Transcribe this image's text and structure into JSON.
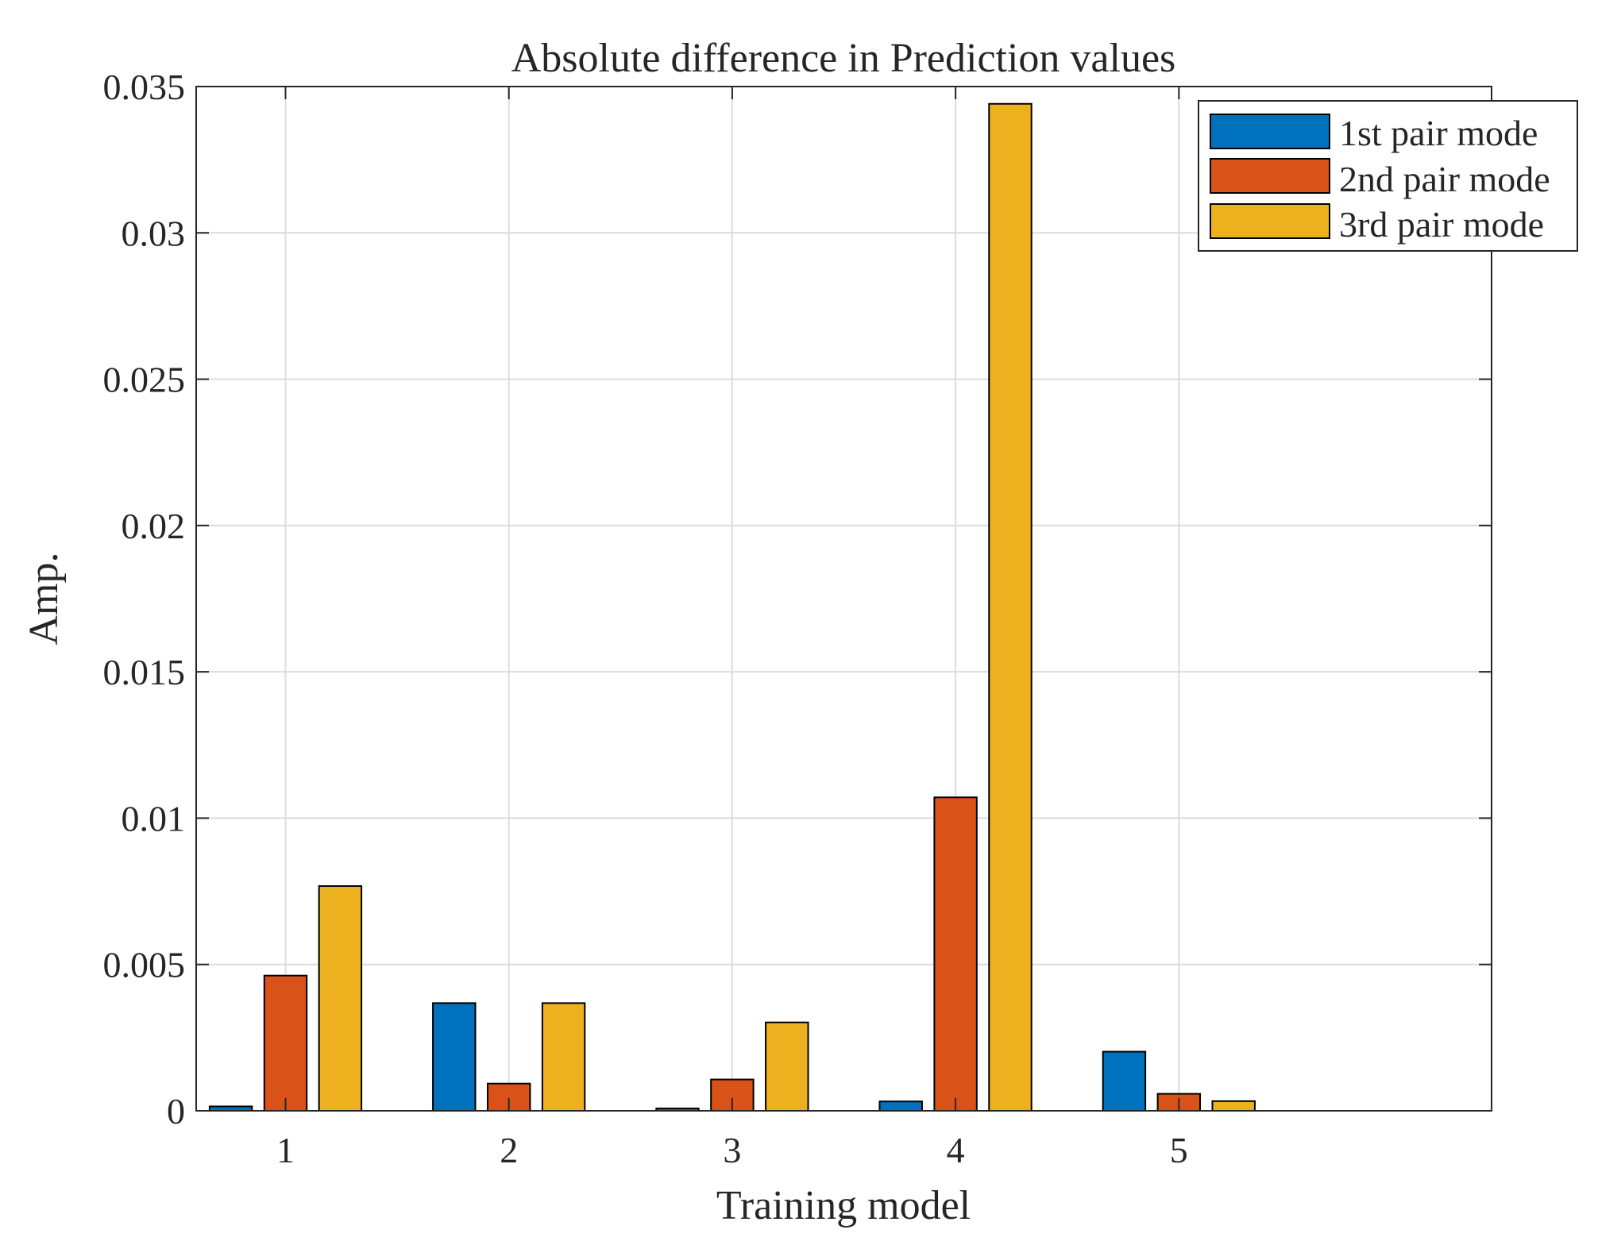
{
  "chart_data": {
    "type": "bar",
    "title": "Absolute difference in Prediction values",
    "xlabel": "Training model",
    "ylabel": "Amp.",
    "categories": [
      "1",
      "2",
      "3",
      "4",
      "5"
    ],
    "ylim": [
      0,
      0.035
    ],
    "yticks": [
      0,
      0.005,
      0.01,
      0.015,
      0.02,
      0.025,
      0.03,
      0.035
    ],
    "ytick_labels": [
      "0",
      "0.005",
      "0.01",
      "0.015",
      "0.02",
      "0.025",
      "0.03",
      "0.035"
    ],
    "grid": true,
    "legend_position": "top-right",
    "series": [
      {
        "name": "1st pair mode",
        "color": "#0072BD",
        "values": [
          0.00015,
          0.00368,
          8e-05,
          0.00032,
          0.00202
        ]
      },
      {
        "name": "2nd pair mode",
        "color": "#D95319",
        "values": [
          0.00462,
          0.00093,
          0.00107,
          0.01071,
          0.00058
        ]
      },
      {
        "name": "3rd pair mode",
        "color": "#EDB120",
        "values": [
          0.00768,
          0.00368,
          0.00302,
          0.03441,
          0.00033
        ]
      }
    ]
  }
}
